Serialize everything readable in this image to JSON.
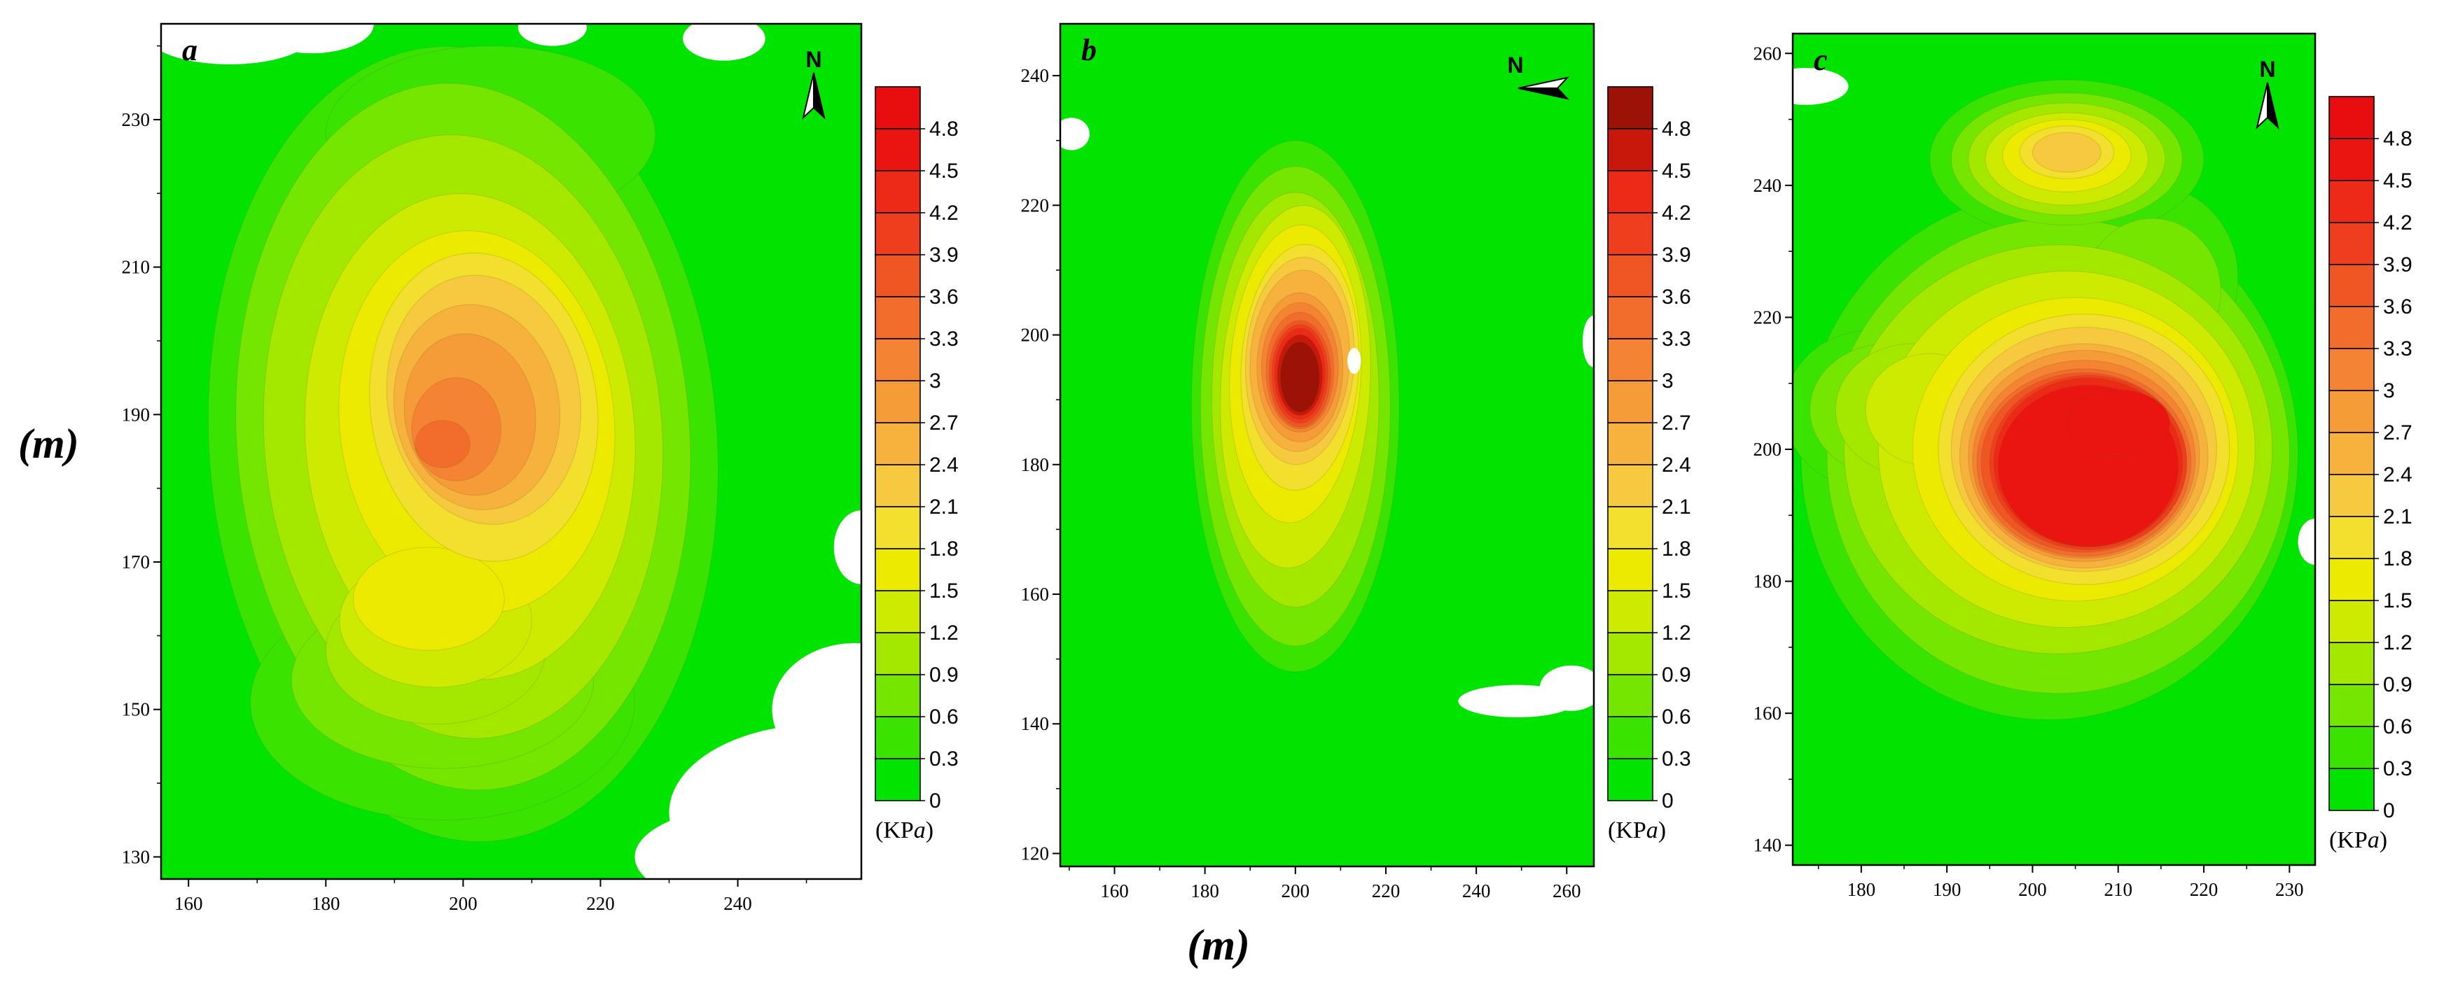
{
  "figure": {
    "y_axis_label": "(m)",
    "x_axis_label": "(m)",
    "kpa_prefix": "(KP",
    "kpa_italic": "a",
    "kpa_suffix": ")"
  },
  "colorbar_tick_labels": [
    "0",
    "0.3",
    "0.6",
    "0.9",
    "1.2",
    "1.5",
    "1.8",
    "2.1",
    "2.4",
    "2.7",
    "3",
    "3.3",
    "3.6",
    "3.9",
    "4.2",
    "4.5",
    "4.8"
  ],
  "shape_format": "each contour shape is [center_x_m, center_y_m, radius_x_m, radius_y_m, rotation_deg]",
  "chart_data": [
    {
      "type": "heatmap",
      "panel_label": "a",
      "north_arrow": "up",
      "x_unit": "m",
      "y_unit": "m",
      "value_unit": "KPa",
      "x_ticks": [
        160,
        180,
        200,
        220,
        240
      ],
      "x_minor_step": 10,
      "y_ticks": [
        130,
        150,
        170,
        190,
        210,
        230
      ],
      "y_minor_step": 10,
      "xlim": [
        156,
        258
      ],
      "ylim": [
        127,
        243
      ],
      "level_step": 0.3,
      "peak_value_kpa_approx": 3.4,
      "peak_center_m": [
        200,
        188
      ],
      "colorbar_colors": [
        "#00E400",
        "#3BE400",
        "#74E600",
        "#A4E800",
        "#CDEB00",
        "#EBEA00",
        "#F2DF2E",
        "#F6C93E",
        "#F6B23C",
        "#F59B38",
        "#F48434",
        "#F26C2C",
        "#F05524",
        "#EE3E1D",
        "#EC2A17",
        "#EA1511",
        "#E80D0E"
      ],
      "contours": [
        {
          "level": 0.3,
          "shapes": [
            [
              200,
              186,
              37,
              54,
              -4
            ],
            [
              197,
              151,
              28,
              16,
              0
            ],
            [
              204,
              228,
              24,
              12,
              0
            ]
          ]
        },
        {
          "level": 0.6,
          "shapes": [
            [
              200,
              187,
              33,
              48,
              -4
            ],
            [
              197,
              154,
              22,
              12,
              0
            ]
          ]
        },
        {
          "level": 0.9,
          "shapes": [
            [
              200,
              187,
              29,
              41,
              -4
            ],
            [
              196,
              158,
              16,
              10,
              0
            ]
          ]
        },
        {
          "level": 1.2,
          "shapes": [
            [
              201,
              187,
              24,
              33,
              -4
            ],
            [
              196,
              162,
              14,
              9,
              0
            ]
          ]
        },
        {
          "level": 1.5,
          "shapes": [
            [
              202,
              189,
              20,
              26,
              -6
            ],
            [
              195,
              165,
              11,
              7,
              0
            ]
          ]
        },
        {
          "level": 1.8,
          "shapes": [
            [
              203,
              191,
              16.5,
              21,
              -8
            ]
          ]
        },
        {
          "level": 2.1,
          "shapes": [
            [
              203,
              192,
              14,
              17,
              -10
            ]
          ]
        },
        {
          "level": 2.4,
          "shapes": [
            [
              202,
              191,
              12,
              14,
              -10
            ]
          ]
        },
        {
          "level": 2.7,
          "shapes": [
            [
              201,
              190,
              9.5,
              11,
              -10
            ]
          ]
        },
        {
          "level": 3.0,
          "shapes": [
            [
              199,
              188,
              6.5,
              7,
              0
            ]
          ]
        },
        {
          "level": 3.3,
          "shapes": [
            [
              197,
              186,
              4,
              3.2,
              0
            ]
          ]
        }
      ],
      "white_patches": [
        [
          166,
          241.5,
          12,
          4
        ],
        [
          178,
          243,
          9,
          4
        ],
        [
          213,
          242.5,
          5,
          2.5
        ],
        [
          238,
          241,
          6,
          3
        ],
        [
          252,
          136,
          22,
          12
        ],
        [
          257,
          150,
          12,
          9
        ],
        [
          243,
          130,
          18,
          7
        ],
        [
          258,
          172,
          4,
          5
        ]
      ]
    },
    {
      "type": "heatmap",
      "panel_label": "b",
      "north_arrow": "left",
      "x_unit": "m",
      "y_unit": "m",
      "value_unit": "KPa",
      "x_ticks": [
        160,
        180,
        200,
        220,
        240,
        260
      ],
      "x_minor_step": 10,
      "y_ticks": [
        120,
        140,
        160,
        180,
        200,
        220,
        240
      ],
      "y_minor_step": 10,
      "xlim": [
        148,
        266
      ],
      "ylim": [
        118,
        248
      ],
      "level_step": 0.3,
      "peak_value_kpa_approx": 5.0,
      "peak_center_m": [
        201,
        194
      ],
      "colorbar_colors": [
        "#00E400",
        "#3BE400",
        "#74E600",
        "#A4E800",
        "#CDEB00",
        "#EBEA00",
        "#F2DF2E",
        "#F6C93E",
        "#F6B23C",
        "#F59B38",
        "#F48434",
        "#F26C2C",
        "#F05524",
        "#EE3E1D",
        "#EC2A17",
        "#C8170B",
        "#9C1207"
      ],
      "contours": [
        {
          "level": 0.3,
          "shapes": [
            [
              200,
              189,
              23,
              41,
              0
            ]
          ]
        },
        {
          "level": 0.6,
          "shapes": [
            [
              200,
              189,
              21,
              37,
              0
            ]
          ]
        },
        {
          "level": 0.9,
          "shapes": [
            [
              200,
              190,
              18.5,
              32,
              0
            ]
          ]
        },
        {
          "level": 1.2,
          "shapes": [
            [
              200,
              192,
              16.5,
              28,
              3
            ]
          ]
        },
        {
          "level": 1.5,
          "shapes": [
            [
              200,
              194,
              14.5,
              23,
              3
            ]
          ]
        },
        {
          "level": 1.8,
          "shapes": [
            [
              201,
              195,
              13,
              19,
              3
            ]
          ]
        },
        {
          "level": 2.1,
          "shapes": [
            [
              201,
              196,
              12,
              16,
              3
            ]
          ]
        },
        {
          "level": 2.4,
          "shapes": [
            [
              201,
              196,
              11,
              14,
              3
            ]
          ]
        },
        {
          "level": 2.7,
          "shapes": [
            [
              201,
              195,
              9.5,
              11.5,
              0
            ]
          ]
        },
        {
          "level": 3.0,
          "shapes": [
            [
              201,
              195,
              8.5,
              10,
              0
            ]
          ]
        },
        {
          "level": 3.3,
          "shapes": [
            [
              201,
              194.5,
              7.5,
              9,
              0
            ]
          ]
        },
        {
          "level": 3.6,
          "shapes": [
            [
              201,
              194,
              6.8,
              8.2,
              0
            ]
          ]
        },
        {
          "level": 3.9,
          "shapes": [
            [
              201,
              194,
              6.2,
              7.6,
              0
            ]
          ]
        },
        {
          "level": 4.2,
          "shapes": [
            [
              201,
              194,
              5.6,
              7,
              0
            ]
          ]
        },
        {
          "level": 4.5,
          "shapes": [
            [
              201,
              193.8,
              5,
              6.2,
              0
            ]
          ]
        },
        {
          "level": 4.8,
          "shapes": [
            [
              201,
              193.5,
              4.3,
              5.4,
              0
            ]
          ]
        }
      ],
      "white_patches": [
        [
          150.5,
          231,
          4,
          2.5
        ],
        [
          249,
          143.5,
          13,
          2.5
        ],
        [
          261,
          145.5,
          7,
          3.5
        ],
        [
          266,
          199,
          2.5,
          4
        ],
        [
          213,
          196,
          1.5,
          2
        ]
      ]
    },
    {
      "type": "heatmap",
      "panel_label": "c",
      "north_arrow": "up",
      "x_unit": "m",
      "y_unit": "m",
      "value_unit": "KPa",
      "x_ticks": [
        180,
        190,
        200,
        210,
        220,
        230
      ],
      "x_minor_step": 5,
      "y_ticks": [
        140,
        160,
        180,
        200,
        220,
        240,
        260
      ],
      "y_minor_step": 10,
      "xlim": [
        172,
        233
      ],
      "ylim": [
        137,
        263
      ],
      "level_step": 0.3,
      "peak_value_kpa_approx": 4.8,
      "peak_center_m": [
        206,
        198
      ],
      "colorbar_colors": [
        "#00E400",
        "#3BE400",
        "#74E600",
        "#A4E800",
        "#CDEB00",
        "#EBEA00",
        "#F2DF2E",
        "#F6C93E",
        "#F6B23C",
        "#F59B38",
        "#F48434",
        "#F26C2C",
        "#F05524",
        "#EE3E1D",
        "#EC2A17",
        "#EA1511",
        "#E80D0E"
      ],
      "contours": [
        {
          "level": 0.3,
          "shapes": [
            [
              202,
              199,
              29,
              40,
              3
            ],
            [
              214,
              226,
              10,
              14,
              0
            ],
            [
              181,
              206,
              10,
              12,
              0
            ],
            [
              204,
              244,
              16,
              12,
              0
            ]
          ]
        },
        {
          "level": 0.6,
          "shapes": [
            [
              203,
              199,
              27,
              36,
              3
            ],
            [
              214,
              224,
              8,
              11,
              0
            ],
            [
              183,
              206,
              9,
              10,
              0
            ],
            [
              204,
              244,
              13.5,
              10,
              0
            ]
          ]
        },
        {
          "level": 0.9,
          "shapes": [
            [
              203,
              200,
              25,
              31,
              0
            ],
            [
              186,
              206,
              9,
              10,
              0
            ],
            [
              204,
              244,
              11.5,
              8.5,
              0
            ]
          ]
        },
        {
          "level": 1.2,
          "shapes": [
            [
              204,
              200,
              22,
              27,
              0
            ],
            [
              188,
              206,
              7.5,
              8.5,
              0
            ],
            [
              204,
              244,
              9.5,
              7,
              0
            ]
          ]
        },
        {
          "level": 1.5,
          "shapes": [
            [
              205,
              200,
              19,
              23,
              0
            ],
            [
              204,
              244.5,
              7.5,
              5.5,
              0
            ]
          ]
        },
        {
          "level": 1.8,
          "shapes": [
            [
              206,
              200,
              17,
              20.5,
              0
            ],
            [
              204,
              245,
              5.5,
              4,
              0
            ]
          ]
        },
        {
          "level": 2.1,
          "shapes": [
            [
              206,
              200,
              15.5,
              18.5,
              0
            ],
            [
              204,
              245,
              4,
              3,
              0
            ]
          ]
        },
        {
          "level": 2.4,
          "shapes": [
            [
              206,
              199,
              14.5,
              17,
              0
            ]
          ]
        },
        {
          "level": 2.7,
          "shapes": [
            [
              206,
              199,
              13.5,
              16,
              0
            ]
          ]
        },
        {
          "level": 3.0,
          "shapes": [
            [
              206,
              198.5,
              13,
              15,
              0
            ]
          ]
        },
        {
          "level": 3.3,
          "shapes": [
            [
              206,
              198,
              12.5,
              14.2,
              0
            ]
          ]
        },
        {
          "level": 3.6,
          "shapes": [
            [
              206,
              198,
              12,
              13.6,
              0
            ]
          ]
        },
        {
          "level": 3.9,
          "shapes": [
            [
              206.5,
              198,
              11.5,
              13.2,
              0
            ]
          ]
        },
        {
          "level": 4.2,
          "shapes": [
            [
              206.5,
              198,
              11,
              12.8,
              0
            ]
          ]
        },
        {
          "level": 4.5,
          "shapes": [
            [
              206.5,
              197.5,
              10.5,
              12.2,
              0
            ],
            [
              210,
              204,
              6,
              5,
              0
            ]
          ]
        }
      ],
      "white_patches": [
        [
          173.5,
          255,
          5,
          2.8
        ],
        [
          233,
          186,
          2,
          3.5
        ]
      ]
    }
  ]
}
